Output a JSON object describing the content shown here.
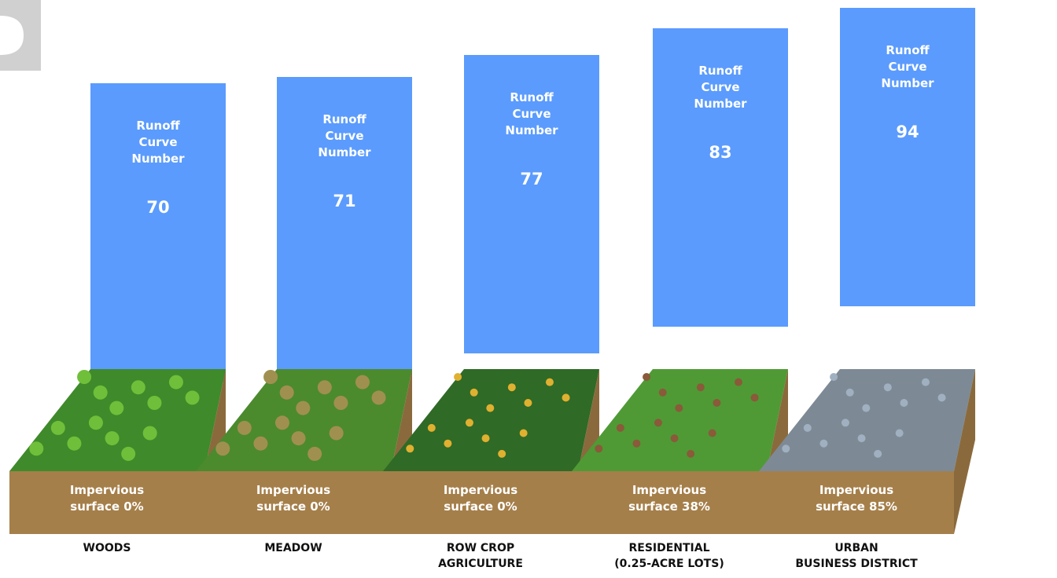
{
  "panels": [
    {
      "runoff_label": "Runoff\nCurve\nNumber",
      "curve_number": "70",
      "impervious": "Impervious\nsurface 0%",
      "name": "WOODS"
    },
    {
      "runoff_label": "Runoff\nCurve\nNumber",
      "curve_number": "71",
      "impervious": "Impervious\nsurface 0%",
      "name": "MEADOW"
    },
    {
      "runoff_label": "Runoff\nCurve\nNumber",
      "curve_number": "77",
      "impervious": "Impervious\nsurface 0%",
      "name": "ROW CROP\nAGRICULTURE"
    },
    {
      "runoff_label": "Runoff\nCurve\nNumber",
      "curve_number": "83",
      "impervious": "Impervious\nsurface 38%",
      "name": "RESIDENTIAL\n(0.25-ACRE LOTS)"
    },
    {
      "runoff_label": "Runoff\nCurve\nNumber",
      "curve_number": "94",
      "impervious": "Impervious\nsurface 85%",
      "name": "URBAN\nBUSINESS DISTRICT"
    }
  ]
}
